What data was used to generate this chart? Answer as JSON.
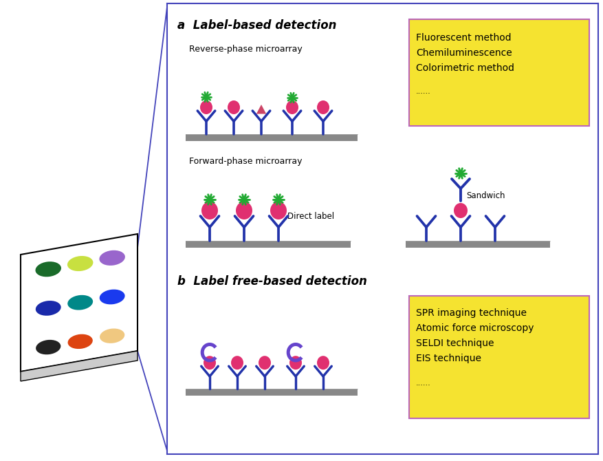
{
  "bg_color": "#ffffff",
  "blue_line_color": "#4444bb",
  "label_a_text": "a  Label-based detection",
  "label_b_text": "b  Label free-based detection",
  "reverse_phase_text": "Reverse-phase microarray",
  "forward_phase_text": "Forward-phase microarray",
  "direct_label_text": "Direct label",
  "sandwich_text": "Sandwich",
  "yellow_box1_lines": [
    "Fluorescent method",
    "Chemiluminescence",
    "Colorimetric method",
    "......"
  ],
  "yellow_box2_lines": [
    "SPR imaging technique",
    "Atomic force microscopy",
    "SELDI technique",
    "EIS technique",
    "......"
  ],
  "yellow_bg": "#f5e330",
  "yellow_border": "#bb66bb",
  "dot_colors": [
    [
      "#1a6b2a",
      "#c8e040",
      "#9966cc"
    ],
    [
      "#1a2aaa",
      "#008888",
      "#1a3aee"
    ],
    [
      "#222222",
      "#dd4411",
      "#f0c880"
    ]
  ],
  "platform_color": "#888888",
  "antibody_color": "#2233aa",
  "antigen_pink": "#e03070",
  "label_green": "#22aa33",
  "purple_arc": "#6644cc",
  "triangle_pink": "#cc4466"
}
